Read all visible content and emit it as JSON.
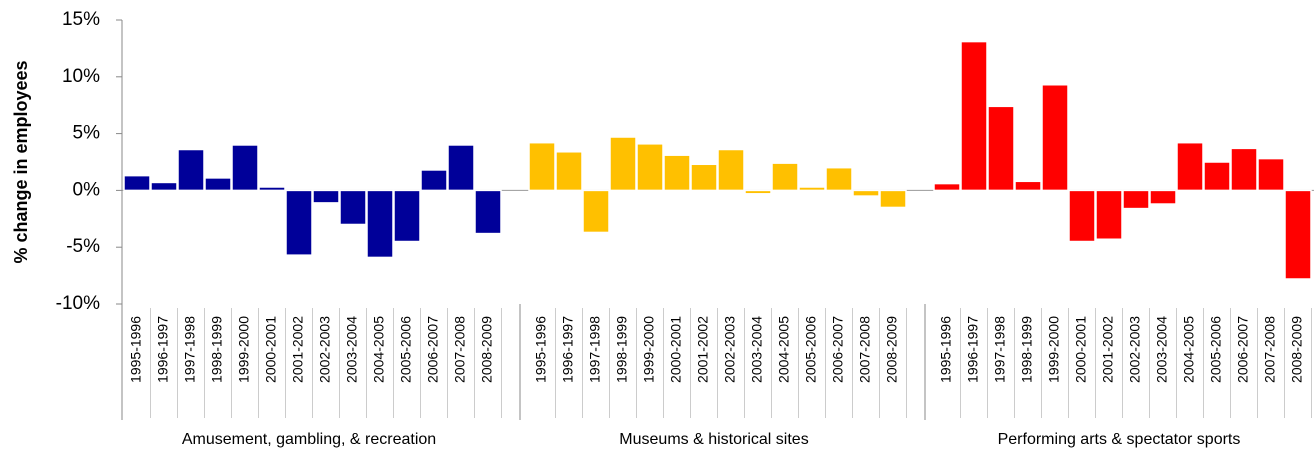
{
  "chart_data": {
    "type": "bar",
    "y_label": "% change in employees",
    "categories": [
      "1995-1996",
      "1996-1997",
      "1997-1998",
      "1998-1999",
      "1999-2000",
      "2000-2001",
      "2001-2002",
      "2002-2003",
      "2003-2004",
      "2004-2005",
      "2005-2006",
      "2006-2007",
      "2007-2008",
      "2008-2009"
    ],
    "series": [
      {
        "name": "Amusement, gambling, & recreation",
        "color": "#000099",
        "values": [
          1.3,
          0.7,
          3.6,
          1.1,
          4.0,
          0.3,
          -5.7,
          -1.1,
          -3.0,
          -5.9,
          -4.5,
          1.8,
          4.0,
          -3.8
        ]
      },
      {
        "name": "Museums & historical sites",
        "color": "#FFC000",
        "values": [
          4.2,
          3.4,
          -3.7,
          4.7,
          4.1,
          3.1,
          2.3,
          3.6,
          -0.3,
          2.4,
          0.3,
          2.0,
          -0.5,
          -1.5
        ]
      },
      {
        "name": "Performing arts & spectator sports",
        "color": "#FF0000",
        "values": [
          0.6,
          13.1,
          7.4,
          0.8,
          9.3,
          -4.5,
          -4.3,
          -1.6,
          -1.2,
          4.2,
          2.5,
          3.7,
          2.8,
          -7.8
        ]
      }
    ],
    "ylim": [
      -10,
      15
    ],
    "yticks": [
      {
        "value": -10,
        "label": "-10%"
      },
      {
        "value": -5,
        "label": "-5%"
      },
      {
        "value": 0,
        "label": "0%"
      },
      {
        "value": 5,
        "label": "5%"
      },
      {
        "value": 10,
        "label": "10%"
      },
      {
        "value": 15,
        "label": "15%"
      }
    ]
  }
}
